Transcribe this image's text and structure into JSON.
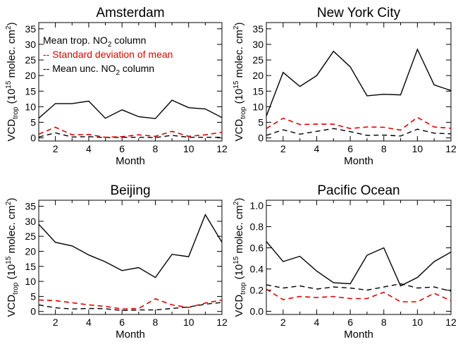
{
  "chart_data": [
    {
      "type": "line",
      "title": "Amsterdam",
      "xlabel": "Month",
      "ylabel": {
        "prefix": "VCD",
        "sub": "trop",
        "mid": " (10",
        "sup": "15",
        "suffix": " molec. cm",
        "sup2": "2",
        "end": ")"
      },
      "x": [
        1,
        2,
        3,
        4,
        5,
        6,
        7,
        8,
        9,
        10,
        11,
        12
      ],
      "xlim": [
        1,
        12
      ],
      "xticks": [
        2,
        4,
        6,
        8,
        10,
        12
      ],
      "ylim": [
        -1,
        37
      ],
      "yticks": [
        0,
        5,
        10,
        15,
        20,
        25,
        30,
        35
      ],
      "series": [
        {
          "name": "Mean trop. NO2 column",
          "color": "#000000",
          "dash": "solid",
          "values": [
            6.3,
            11.0,
            11.0,
            11.8,
            6.3,
            9.0,
            6.8,
            6.2,
            12.1,
            9.7,
            9.3,
            6.5
          ]
        },
        {
          "name": "Standard deviation of mean",
          "color": "#e00000",
          "dash": "dashed",
          "values": [
            1.2,
            3.4,
            1.0,
            1.1,
            0.2,
            0.4,
            1.0,
            0.5,
            2.1,
            0.5,
            1.0,
            1.8
          ]
        },
        {
          "name": "Mean unc. NO2 column",
          "color": "#000000",
          "dash": "dashed",
          "values": [
            0.3,
            1.6,
            0.3,
            0.4,
            0.1,
            0.2,
            0.2,
            0.1,
            0.8,
            0.2,
            0.2,
            0.2
          ]
        }
      ],
      "legend": {
        "placement": "top-left",
        "entries": [
          {
            "prefix": "",
            "text": "Mean trop. NO",
            "sub": "2",
            "after": " column",
            "color": "#000000"
          },
          {
            "prefix": "-- ",
            "text": "Standard deviation of mean",
            "sub": "",
            "after": "",
            "color": "#e00000"
          },
          {
            "prefix": "-- ",
            "text": "Mean unc. NO",
            "sub": "2",
            "after": " column",
            "color": "#000000"
          }
        ]
      }
    },
    {
      "type": "line",
      "title": "New York City",
      "xlabel": "Month",
      "ylabel": {
        "prefix": "VCD",
        "sub": "trop",
        "mid": " (10",
        "sup": "15",
        "suffix": " molec. cm",
        "sup2": "2",
        "end": ")"
      },
      "x": [
        1,
        2,
        3,
        4,
        5,
        6,
        7,
        8,
        9,
        10,
        11,
        12
      ],
      "xlim": [
        1,
        12
      ],
      "xticks": [
        2,
        4,
        6,
        8,
        10,
        12
      ],
      "ylim": [
        -1,
        37
      ],
      "yticks": [
        0,
        5,
        10,
        15,
        20,
        25,
        30,
        35
      ],
      "series": [
        {
          "name": "Mean trop. NO2 column",
          "color": "#000000",
          "dash": "solid",
          "values": [
            7.0,
            21.0,
            16.5,
            20.0,
            27.8,
            22.8,
            13.5,
            14.0,
            13.8,
            28.4,
            17.0,
            15.2
          ]
        },
        {
          "name": "Standard deviation of mean",
          "color": "#e00000",
          "dash": "dashed",
          "values": [
            3.0,
            6.3,
            4.3,
            4.4,
            4.4,
            3.0,
            3.5,
            3.4,
            2.5,
            6.6,
            3.5,
            3.1
          ]
        },
        {
          "name": "Mean unc. NO2 column",
          "color": "#000000",
          "dash": "dashed",
          "values": [
            0.8,
            2.6,
            1.2,
            2.1,
            3.0,
            2.0,
            0.8,
            0.9,
            0.6,
            2.8,
            1.5,
            1.3
          ]
        }
      ]
    },
    {
      "type": "line",
      "title": "Beijing",
      "xlabel": "Month",
      "ylabel": {
        "prefix": "VCD",
        "sub": "trop",
        "mid": " (10",
        "sup": "15",
        "suffix": " molec. cm",
        "sup2": "2",
        "end": ")"
      },
      "x": [
        1,
        2,
        3,
        4,
        5,
        6,
        7,
        8,
        9,
        10,
        11,
        12
      ],
      "xlim": [
        1,
        12
      ],
      "xticks": [
        2,
        4,
        6,
        8,
        10,
        12
      ],
      "ylim": [
        -1,
        37
      ],
      "yticks": [
        0,
        5,
        10,
        15,
        20,
        25,
        30,
        35
      ],
      "series": [
        {
          "name": "Mean trop. NO2 column",
          "color": "#000000",
          "dash": "solid",
          "values": [
            29.0,
            23.0,
            21.8,
            18.8,
            16.5,
            13.6,
            14.6,
            11.3,
            19.0,
            18.2,
            32.2,
            23.0
          ]
        },
        {
          "name": "Standard deviation of mean",
          "color": "#e00000",
          "dash": "dashed",
          "values": [
            3.8,
            3.6,
            2.9,
            2.2,
            1.7,
            0.8,
            1.0,
            4.2,
            2.2,
            1.3,
            2.8,
            3.8
          ]
        },
        {
          "name": "Mean unc. NO2 column",
          "color": "#000000",
          "dash": "dashed",
          "values": [
            2.2,
            1.2,
            0.8,
            1.0,
            0.9,
            0.3,
            0.5,
            0.5,
            1.0,
            1.5,
            2.4,
            3.0
          ]
        }
      ]
    },
    {
      "type": "line",
      "title": "Pacific Ocean",
      "xlabel": "Month",
      "ylabel": {
        "prefix": "VCD",
        "sub": "trop",
        "mid": " (10",
        "sup": "15",
        "suffix": " molec. cm",
        "sup2": "2",
        "end": ")"
      },
      "x": [
        1,
        2,
        3,
        4,
        5,
        6,
        7,
        8,
        9,
        10,
        11,
        12
      ],
      "xlim": [
        1,
        12
      ],
      "xticks": [
        2,
        4,
        6,
        8,
        10,
        12
      ],
      "ylim": [
        -0.03,
        1.05
      ],
      "yticks": [
        0.0,
        0.2,
        0.4,
        0.6,
        0.8,
        1.0
      ],
      "ytick_labels": [
        "0.0",
        "0.2",
        "0.4",
        "0.6",
        "0.8",
        "1.0"
      ],
      "series": [
        {
          "name": "Mean trop. NO2 column",
          "color": "#000000",
          "dash": "solid",
          "values": [
            0.66,
            0.47,
            0.52,
            0.38,
            0.27,
            0.26,
            0.53,
            0.6,
            0.24,
            0.32,
            0.47,
            0.56
          ]
        },
        {
          "name": "Standard deviation of mean",
          "color": "#e00000",
          "dash": "dashed",
          "values": [
            0.21,
            0.11,
            0.14,
            0.13,
            0.14,
            0.12,
            0.12,
            0.18,
            0.09,
            0.09,
            0.17,
            0.1
          ]
        },
        {
          "name": "Mean unc. NO2 column",
          "color": "#000000",
          "dash": "dashed",
          "values": [
            0.25,
            0.22,
            0.24,
            0.21,
            0.23,
            0.22,
            0.2,
            0.23,
            0.26,
            0.22,
            0.23,
            0.19
          ]
        }
      ]
    }
  ]
}
